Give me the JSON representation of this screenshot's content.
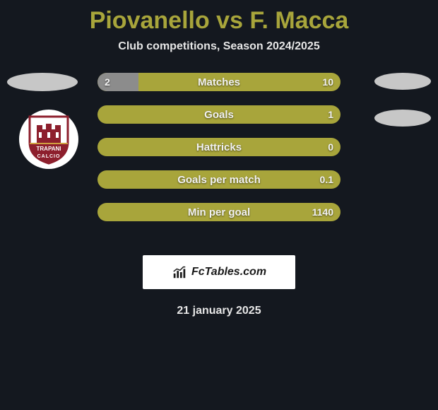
{
  "title_color": "#a8a53b",
  "title": "Piovanello vs F. Macca",
  "subtitle": "Club competitions, Season 2024/2025",
  "brand": "FcTables.com",
  "date": "21 january 2025",
  "crest": {
    "top_text": "TRAPANI",
    "bottom_text": "CALCIO",
    "primary": "#8d1f2d",
    "accent": "#d0a040"
  },
  "bar_bg": "#a8a53b",
  "bar_fill_left": "#8c8c8c",
  "bars": [
    {
      "label": "Matches",
      "left": "2",
      "right": "10",
      "left_pct": 17
    },
    {
      "label": "Goals",
      "left": "",
      "right": "1",
      "left_pct": 0
    },
    {
      "label": "Hattricks",
      "left": "",
      "right": "0",
      "left_pct": 0
    },
    {
      "label": "Goals per match",
      "left": "",
      "right": "0.1",
      "left_pct": 0
    },
    {
      "label": "Min per goal",
      "left": "",
      "right": "1140",
      "left_pct": 0
    }
  ]
}
